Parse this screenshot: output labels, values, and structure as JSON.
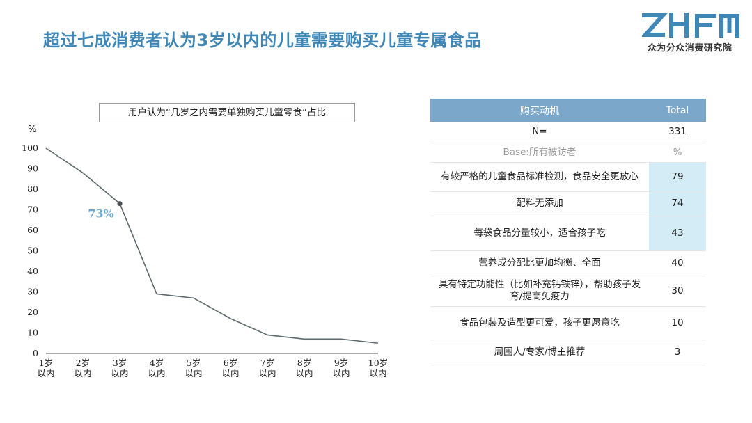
{
  "page": {
    "title": "超过七成消费者认为3岁以内的儿童需要购买儿童专属食品"
  },
  "logo": {
    "mark": "ZHFM",
    "subtitle": "众为分众消费研究院",
    "color": "#3f87b6"
  },
  "chart_data": {
    "type": "line",
    "title": "用户认为“几岁之内需要单独购买儿童零食”占比",
    "ylabel": "%",
    "categories": [
      "1岁以内",
      "2岁以内",
      "3岁以内",
      "4岁以内",
      "5岁以内",
      "6岁以内",
      "7岁以内",
      "8岁以内",
      "9岁以内",
      "10岁以内"
    ],
    "tick_lines": [
      [
        "1岁",
        "以内"
      ],
      [
        "2岁",
        "以内"
      ],
      [
        "3岁",
        "以内"
      ],
      [
        "4岁",
        "以内"
      ],
      [
        "5岁",
        "以内"
      ],
      [
        "6岁",
        "以内"
      ],
      [
        "7岁",
        "以内"
      ],
      [
        "8岁",
        "以内"
      ],
      [
        "9岁",
        "以内"
      ],
      [
        "10岁",
        "以内"
      ]
    ],
    "values": [
      100,
      88,
      73,
      29,
      27,
      17,
      9,
      7,
      7,
      5
    ],
    "ylim": [
      0,
      100
    ],
    "yticks": [
      0,
      10,
      20,
      30,
      40,
      50,
      60,
      70,
      80,
      90,
      100
    ],
    "highlight": {
      "index": 2,
      "label": "73%"
    },
    "line_color": "#5d6a6e",
    "grid": false
  },
  "table": {
    "headers": [
      "购买动机",
      "Total"
    ],
    "header_color": "#7aa7ca",
    "highlight_color": "#d3ecf5",
    "rows": [
      {
        "label": "N=",
        "value": "331",
        "muted": false,
        "highlight": false
      },
      {
        "label": "Base:所有被访者",
        "value": "%",
        "muted": true,
        "highlight": false
      },
      {
        "label": "有较严格的儿童食品标准检测，食品安全更放心",
        "value": "79",
        "muted": false,
        "highlight": true
      },
      {
        "label": "配料无添加",
        "value": "74",
        "muted": false,
        "highlight": true
      },
      {
        "label": "每袋食品分量较小，适合孩子吃",
        "value": "43",
        "muted": false,
        "highlight": true
      },
      {
        "label": "营养成分配比更加均衡、全面",
        "value": "40",
        "muted": false,
        "highlight": false
      },
      {
        "label": "具有特定功能性（比如补充钙铁锌），帮助孩子发育/提高免疫力",
        "value": "30",
        "muted": false,
        "highlight": false
      },
      {
        "label": "食品包装及造型更可爱，孩子更愿意吃",
        "value": "10",
        "muted": false,
        "highlight": false
      },
      {
        "label": "周围人/专家/博主推荐",
        "value": "3",
        "muted": false,
        "highlight": false
      }
    ]
  }
}
